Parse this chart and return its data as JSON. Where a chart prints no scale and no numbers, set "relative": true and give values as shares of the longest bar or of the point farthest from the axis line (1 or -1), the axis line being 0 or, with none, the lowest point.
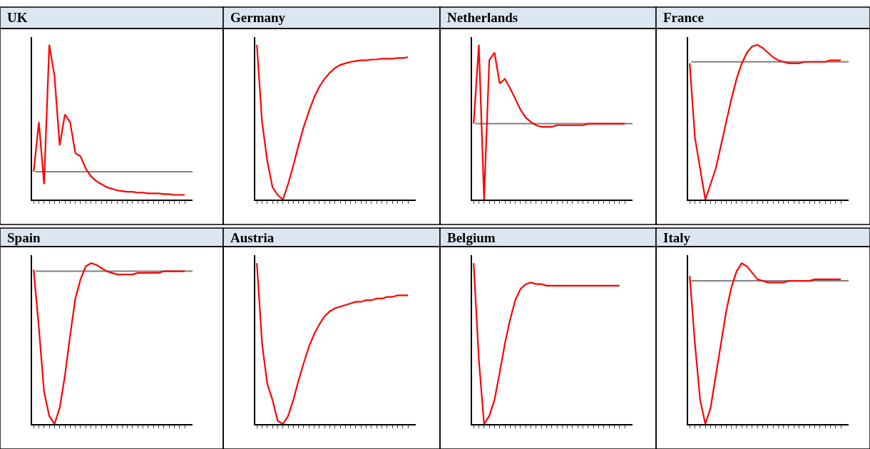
{
  "chart_data": [
    {
      "type": "line",
      "title": "UK",
      "relative": true,
      "tick_labels": false,
      "categories": [
        null,
        null,
        null,
        null,
        null,
        null,
        null,
        null,
        null,
        null,
        null,
        null,
        null,
        null,
        null,
        null,
        null,
        null,
        null,
        null,
        null,
        null,
        null,
        null,
        null,
        null,
        null,
        null,
        null,
        null
      ],
      "series": [
        {
          "color": "#ff0000",
          "values": [
            0.18,
            0.5,
            0.1,
            1.0,
            0.8,
            0.35,
            0.55,
            0.5,
            0.3,
            0.28,
            0.2,
            0.15,
            0.12,
            0.1,
            0.08,
            0.07,
            0.06,
            0.055,
            0.05,
            0.05,
            0.045,
            0.045,
            0.04,
            0.04,
            0.04,
            0.035,
            0.035,
            0.03,
            0.03,
            0.03
          ]
        }
      ],
      "ref_lines": [
        {
          "axis": "y",
          "value": 0.18,
          "color": "#808080"
        }
      ]
    },
    {
      "type": "line",
      "title": "Germany",
      "relative": true,
      "tick_labels": false,
      "categories": [
        null,
        null,
        null,
        null,
        null,
        null,
        null,
        null,
        null,
        null,
        null,
        null,
        null,
        null,
        null,
        null,
        null,
        null,
        null,
        null,
        null,
        null,
        null,
        null,
        null,
        null,
        null,
        null,
        null,
        null
      ],
      "series": [
        {
          "color": "#ff0000",
          "values": [
            1.0,
            0.5,
            0.25,
            0.08,
            0.03,
            0.0,
            0.1,
            0.22,
            0.35,
            0.47,
            0.57,
            0.66,
            0.73,
            0.78,
            0.82,
            0.85,
            0.87,
            0.88,
            0.89,
            0.895,
            0.9,
            0.9,
            0.905,
            0.905,
            0.91,
            0.91,
            0.91,
            0.915,
            0.915,
            0.92
          ]
        }
      ]
    },
    {
      "type": "line",
      "title": "Netherlands",
      "relative": true,
      "tick_labels": false,
      "categories": [
        null,
        null,
        null,
        null,
        null,
        null,
        null,
        null,
        null,
        null,
        null,
        null,
        null,
        null,
        null,
        null,
        null,
        null,
        null,
        null,
        null,
        null,
        null,
        null,
        null,
        null,
        null,
        null,
        null,
        null
      ],
      "series": [
        {
          "color": "#ff0000",
          "values": [
            0.49,
            1.0,
            0.0,
            0.9,
            0.95,
            0.75,
            0.78,
            0.72,
            0.65,
            0.58,
            0.53,
            0.5,
            0.48,
            0.47,
            0.47,
            0.47,
            0.48,
            0.48,
            0.48,
            0.48,
            0.48,
            0.48,
            0.49,
            0.49,
            0.49,
            0.49,
            0.49,
            0.49,
            0.49,
            0.49
          ]
        }
      ],
      "ref_lines": [
        {
          "axis": "y",
          "value": 0.49,
          "color": "#808080"
        }
      ]
    },
    {
      "type": "line",
      "title": "France",
      "relative": true,
      "tick_labels": false,
      "categories": [
        null,
        null,
        null,
        null,
        null,
        null,
        null,
        null,
        null,
        null,
        null,
        null,
        null,
        null,
        null,
        null,
        null,
        null,
        null,
        null,
        null,
        null,
        null,
        null,
        null,
        null,
        null,
        null,
        null,
        null
      ],
      "series": [
        {
          "color": "#ff0000",
          "values": [
            0.88,
            0.4,
            0.2,
            0.0,
            0.1,
            0.2,
            0.35,
            0.5,
            0.65,
            0.78,
            0.88,
            0.95,
            0.99,
            1.0,
            0.98,
            0.95,
            0.92,
            0.9,
            0.89,
            0.88,
            0.88,
            0.88,
            0.89,
            0.89,
            0.89,
            0.89,
            0.89,
            0.9,
            0.9,
            0.9
          ]
        }
      ],
      "ref_lines": [
        {
          "axis": "y",
          "value": 0.89,
          "color": "#808080"
        }
      ]
    },
    {
      "type": "line",
      "title": "Spain",
      "relative": true,
      "tick_labels": false,
      "categories": [
        null,
        null,
        null,
        null,
        null,
        null,
        null,
        null,
        null,
        null,
        null,
        null,
        null,
        null,
        null,
        null,
        null,
        null,
        null,
        null,
        null,
        null,
        null,
        null,
        null,
        null,
        null,
        null,
        null,
        null
      ],
      "series": [
        {
          "color": "#ff0000",
          "values": [
            0.96,
            0.6,
            0.2,
            0.05,
            0.0,
            0.1,
            0.3,
            0.55,
            0.78,
            0.9,
            0.98,
            1.0,
            0.99,
            0.97,
            0.95,
            0.94,
            0.93,
            0.93,
            0.93,
            0.93,
            0.94,
            0.94,
            0.94,
            0.94,
            0.94,
            0.95,
            0.95,
            0.95,
            0.95,
            0.95
          ]
        }
      ],
      "ref_lines": [
        {
          "axis": "y",
          "value": 0.95,
          "color": "#808080"
        }
      ]
    },
    {
      "type": "line",
      "title": "Austria",
      "relative": true,
      "tick_labels": false,
      "categories": [
        null,
        null,
        null,
        null,
        null,
        null,
        null,
        null,
        null,
        null,
        null,
        null,
        null,
        null,
        null,
        null,
        null,
        null,
        null,
        null,
        null,
        null,
        null,
        null,
        null,
        null,
        null,
        null,
        null,
        null
      ],
      "series": [
        {
          "color": "#ff0000",
          "values": [
            1.0,
            0.5,
            0.25,
            0.15,
            0.02,
            0.0,
            0.05,
            0.15,
            0.27,
            0.38,
            0.48,
            0.56,
            0.62,
            0.67,
            0.7,
            0.72,
            0.73,
            0.74,
            0.75,
            0.76,
            0.76,
            0.77,
            0.77,
            0.78,
            0.78,
            0.79,
            0.79,
            0.8,
            0.8,
            0.8
          ]
        }
      ]
    },
    {
      "type": "line",
      "title": "Belgium",
      "relative": true,
      "tick_labels": false,
      "categories": [
        null,
        null,
        null,
        null,
        null,
        null,
        null,
        null,
        null,
        null,
        null,
        null,
        null,
        null,
        null,
        null,
        null,
        null,
        null,
        null,
        null,
        null,
        null,
        null,
        null,
        null,
        null,
        null,
        null,
        null
      ],
      "series": [
        {
          "color": "#ff0000",
          "values": [
            1.0,
            0.4,
            0.0,
            0.05,
            0.15,
            0.32,
            0.5,
            0.65,
            0.77,
            0.84,
            0.87,
            0.88,
            0.87,
            0.87,
            0.86,
            0.86,
            0.86,
            0.86,
            0.86,
            0.86,
            0.86,
            0.86,
            0.86,
            0.86,
            0.86,
            0.86,
            0.86,
            0.86,
            0.86,
            null
          ]
        }
      ]
    },
    {
      "type": "line",
      "title": "Italy",
      "relative": true,
      "tick_labels": false,
      "categories": [
        null,
        null,
        null,
        null,
        null,
        null,
        null,
        null,
        null,
        null,
        null,
        null,
        null,
        null,
        null,
        null,
        null,
        null,
        null,
        null,
        null,
        null,
        null,
        null,
        null,
        null,
        null,
        null,
        null,
        null
      ],
      "series": [
        {
          "color": "#ff0000",
          "values": [
            0.92,
            0.5,
            0.15,
            0.0,
            0.1,
            0.3,
            0.5,
            0.7,
            0.85,
            0.95,
            1.0,
            0.98,
            0.94,
            0.9,
            0.89,
            0.88,
            0.88,
            0.88,
            0.88,
            0.89,
            0.89,
            0.89,
            0.89,
            0.89,
            0.9,
            0.9,
            0.9,
            0.9,
            0.9,
            0.9
          ]
        }
      ],
      "ref_lines": [
        {
          "axis": "y",
          "value": 0.89,
          "color": "#808080"
        }
      ]
    }
  ]
}
